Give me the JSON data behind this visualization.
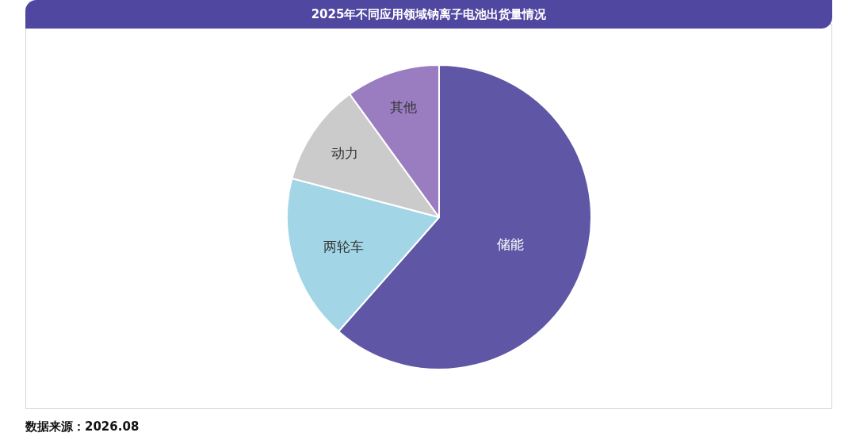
{
  "chart_data": {
    "type": "pie",
    "title": "2025年不同应用领域钠离子电池出货量情况",
    "categories": [
      "储能",
      "两轮车",
      "动力",
      "其他"
    ],
    "values": [
      61.5,
      17.6,
      10.9,
      10.0
    ],
    "colors": [
      "#5f56a6",
      "#a2d6e6",
      "#cbcbcb",
      "#9a7dc0"
    ],
    "annotations": [
      "数据来源：2026.08"
    ]
  }
}
